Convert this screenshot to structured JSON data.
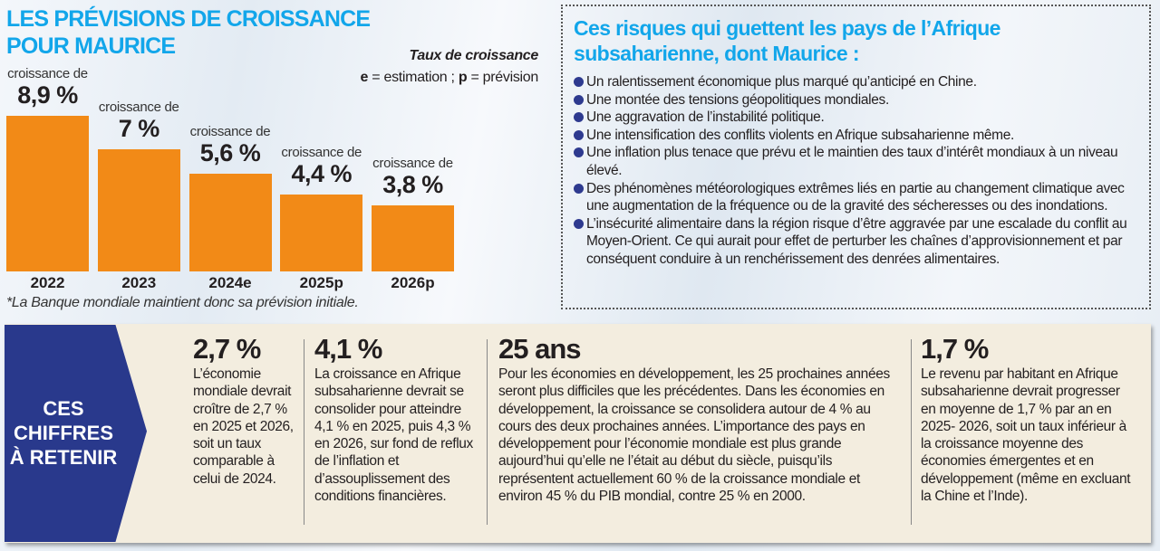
{
  "title": {
    "line1": "LES PRÉVISIONS DE CROISSANCE",
    "line2": "POUR MAURICE"
  },
  "legend": {
    "title": "Taux de croissance",
    "note_e": "e",
    "note_e_text": " = estimation ; ",
    "note_p": "p",
    "note_p_text": " = prévision"
  },
  "chart_data": {
    "type": "bar",
    "categories": [
      "2022",
      "2023",
      "2024e",
      "2025p",
      "2026p"
    ],
    "values": [
      8.9,
      7,
      5.6,
      4.4,
      3.8
    ],
    "label_prefix": "croissance de",
    "data_labels": [
      "8,9 %",
      "7 %",
      "5,6 %",
      "4,4 %",
      "3,8 %"
    ],
    "color": "#f28a17",
    "grid": false,
    "unit": "%"
  },
  "footnote": "*La Banque mondiale maintient donc sa prévision initiale.",
  "risks": {
    "title_line1": "Ces risques qui guettent les pays de l’Afrique",
    "title_line2": "subsaharienne, dont Maurice :",
    "items": [
      "Un ralentissement économique plus marqué qu’anticipé en Chine.",
      "Une montée des tensions géopolitiques mondiales.",
      "Une aggravation de l’instabilité politique.",
      "Une intensification des conflits violents en Afrique subsaharienne même.",
      "Une inflation plus tenace que prévu et le maintien des taux d’intérêt mondiaux à un niveau élevé.",
      "Des phénomènes météorologiques extrêmes liés en partie au changement climatique avec une augmentation de la fréquence ou de la gravité des sécheresses ou des inondations.",
      "L’insécurité alimentaire dans la région risque d’être aggravée par une escalade du conflit au Moyen-Orient. Ce qui aurait pour effet de perturber les chaînes d’approvisionnement et par conséquent conduire à un renchérissement des denrées alimentaires."
    ],
    "bullet_color": "#2e3a8f"
  },
  "figures": {
    "label": {
      "line1": "CES",
      "line2": "CHIFFRES",
      "line3": "À RETENIR"
    },
    "items": [
      {
        "value": "2,7 %",
        "text": "L’économie mondiale devrait croître de 2,7 % en 2025 et 2026, soit un taux comparable à celui de 2024."
      },
      {
        "value": "4,1 %",
        "text": "La croissance en Afrique subsaharienne devrait se consolider pour atteindre 4,1 % en 2025, puis 4,3 % en 2026, sur fond de reflux de l’inflation et d’assouplissement des conditions financières."
      },
      {
        "value": "25 ans",
        "text": "Pour les économies en développement, les 25 prochaines années seront plus difficiles que les précédentes. Dans les économies en développement, la croissance se consolidera autour de 4 % au cours des deux prochaines années. L’importance des pays en développement pour l’économie mondiale est plus grande aujourd’hui qu’elle ne l’était au début du siècle, puisqu’ils représentent actuellement 60 % de la croissance mondiale et environ 45 % du PIB mondial, contre 25 % en 2000."
      },
      {
        "value": "1,7 %",
        "text": "Le revenu par habitant en Afrique subsaharienne devrait progresser en moyenne de 1,7 % par an en 2025- 2026, soit un taux inférieur à la croissance moyenne des économies émergentes et en développement (même en excluant la Chine et l’Inde)."
      }
    ]
  }
}
